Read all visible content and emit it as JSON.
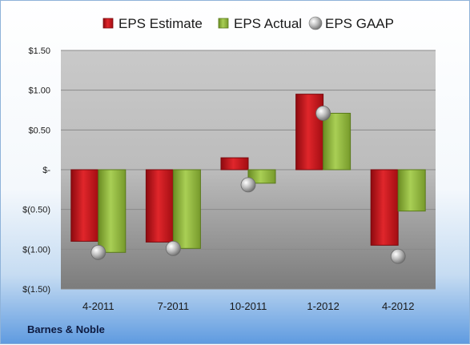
{
  "chart_data": {
    "type": "bar",
    "categories": [
      "4-2011",
      "7-2011",
      "10-2011",
      "1-2012",
      "4-2012"
    ],
    "series": [
      {
        "name": "EPS Estimate",
        "kind": "bar",
        "color": "#c0141a",
        "values": [
          -0.9,
          -0.91,
          0.15,
          0.95,
          -0.95
        ]
      },
      {
        "name": "EPS Actual",
        "kind": "bar",
        "color": "#8db33a",
        "values": [
          -1.04,
          -0.99,
          -0.17,
          0.71,
          -0.52
        ]
      },
      {
        "name": "EPS GAAP",
        "kind": "marker",
        "color": "#a8a8a8",
        "values": [
          -1.04,
          -0.99,
          -0.19,
          0.71,
          -1.09
        ]
      }
    ],
    "yticks": [
      {
        "value": 1.5,
        "label": "$1.50"
      },
      {
        "value": 1.0,
        "label": "$1.00"
      },
      {
        "value": 0.5,
        "label": "$0.50"
      },
      {
        "value": 0,
        "label": "$-"
      },
      {
        "value": -0.5,
        "label": "$(0.50)"
      },
      {
        "value": -1.0,
        "label": "$(1.00)"
      },
      {
        "value": -1.5,
        "label": "$(1.50)"
      }
    ],
    "ylim": [
      -1.5,
      1.5
    ],
    "grid": true,
    "legend_position": "top",
    "title": "",
    "xlabel": "",
    "ylabel": ""
  },
  "footer": {
    "company": "Barnes & Noble"
  }
}
